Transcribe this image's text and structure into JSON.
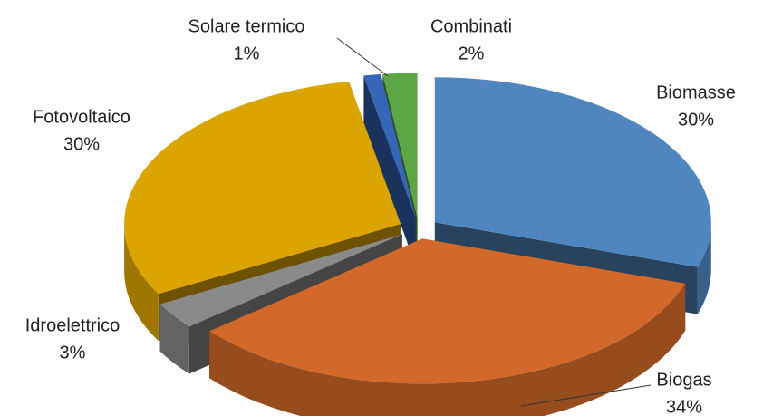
{
  "chart_data": {
    "type": "pie3d",
    "categories": [
      "Biomasse",
      "Biogas",
      "Idroelettrico",
      "Fotovoltaico",
      "Solare termico",
      "Combinati"
    ],
    "values": [
      30,
      34,
      3,
      30,
      1,
      2
    ],
    "value_labels": [
      "30%",
      "34%",
      "3%",
      "30%",
      "1%",
      "2%"
    ],
    "colors": [
      "#4f86c0",
      "#d2692a",
      "#8a8a8a",
      "#dca400",
      "#3566b8",
      "#5ca645"
    ]
  }
}
